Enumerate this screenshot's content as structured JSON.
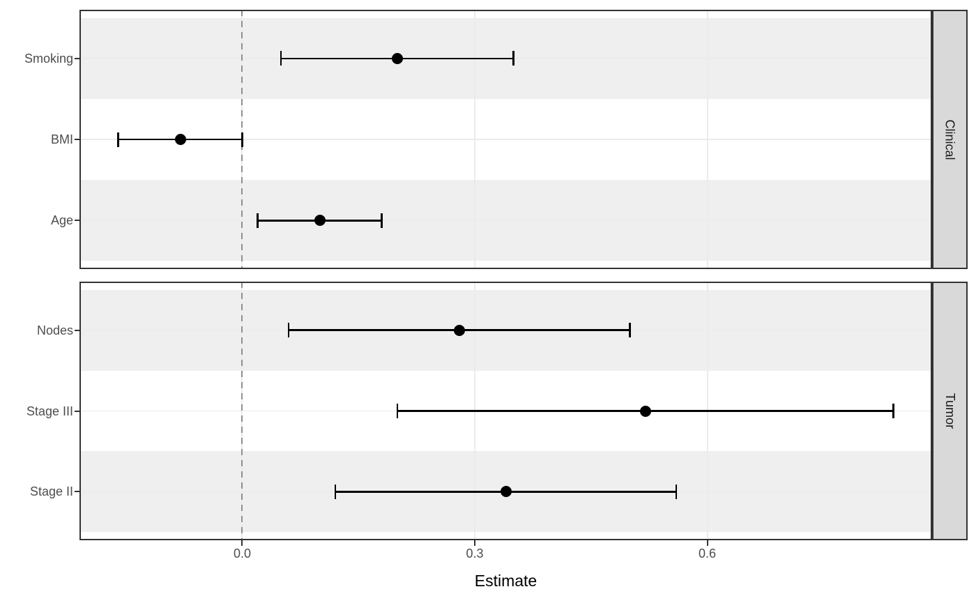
{
  "chart_data": {
    "type": "pointrange",
    "orientation": "horizontal",
    "title": "",
    "xlabel": "Estimate",
    "ylabel": "",
    "xlim": [
      -0.21,
      0.89
    ],
    "x_ticks": [
      {
        "value": 0.0,
        "label": "0.0"
      },
      {
        "value": 0.3,
        "label": "0.3"
      },
      {
        "value": 0.6,
        "label": "0.6"
      }
    ],
    "reference_line": {
      "x": 0.0,
      "linetype": "dashed"
    },
    "legend": "none",
    "grid": "major vertical and horizontal gridlines, alternating gray row bands",
    "facets": [
      {
        "label": "Clinical",
        "rows": [
          {
            "label": "Smoking",
            "estimate": 0.2,
            "ci_low": 0.05,
            "ci_high": 0.35
          },
          {
            "label": "BMI",
            "estimate": -0.08,
            "ci_low": -0.16,
            "ci_high": 0.0
          },
          {
            "label": "Age",
            "estimate": 0.1,
            "ci_low": 0.02,
            "ci_high": 0.18
          }
        ]
      },
      {
        "label": "Tumor",
        "rows": [
          {
            "label": "Nodes",
            "estimate": 0.28,
            "ci_low": 0.06,
            "ci_high": 0.5
          },
          {
            "label": "Stage III",
            "estimate": 0.52,
            "ci_low": 0.2,
            "ci_high": 0.84
          },
          {
            "label": "Stage II",
            "estimate": 0.34,
            "ci_low": 0.12,
            "ci_high": 0.56
          }
        ]
      }
    ],
    "colors": {
      "band": "#efefef",
      "gridline": "#ebebeb",
      "reference_line": "#909090",
      "data": "#000000",
      "strip_fill": "#d9d9d9",
      "strip_border": "#333333",
      "panel_border": "#333333",
      "axis_text": "#4d4d4d",
      "axis_title_text": "#000000"
    }
  }
}
